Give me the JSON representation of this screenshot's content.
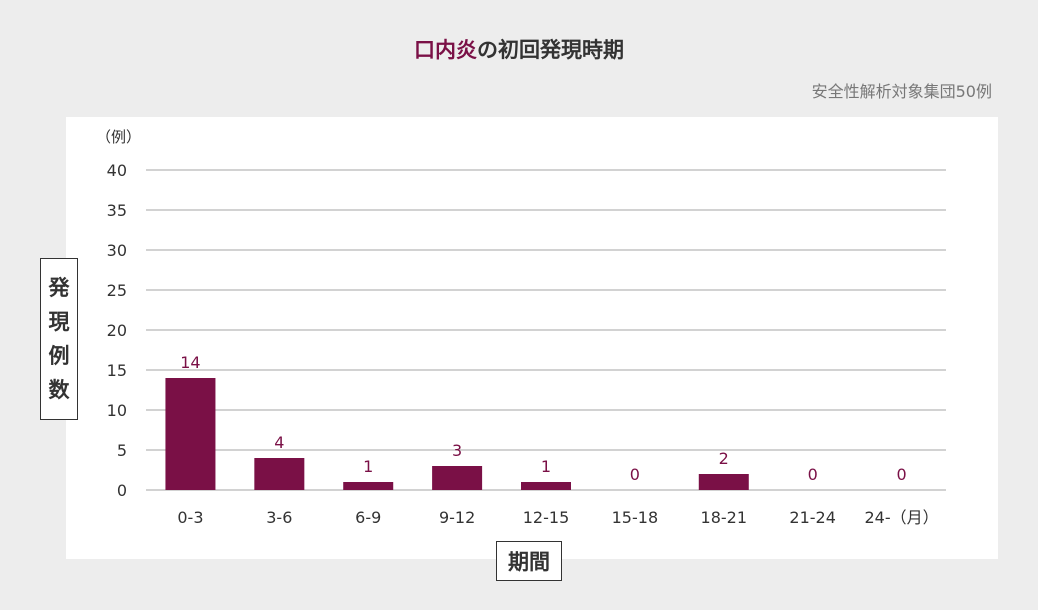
{
  "title": {
    "highlight": "口内炎",
    "rest": "の初回発現時期"
  },
  "subtitle": "安全性解析対象集団50例",
  "unit_label": "（例）",
  "colors": {
    "bar": "#7a1046",
    "label": "#7a1046",
    "grid": "#b8b8b8",
    "background": "#ededed",
    "panel": "#ffffff"
  },
  "chart_data": {
    "type": "bar",
    "title": "口内炎の初回発現時期",
    "xlabel": "期間",
    "ylabel": "発現例数",
    "categories": [
      "0-3",
      "3-6",
      "6-9",
      "9-12",
      "12-15",
      "15-18",
      "18-21",
      "21-24",
      "24-（月）"
    ],
    "values": [
      14,
      4,
      1,
      3,
      1,
      0,
      2,
      0,
      0
    ],
    "ylim": [
      0,
      40
    ],
    "yticks": [
      0,
      5,
      10,
      15,
      20,
      25,
      30,
      35,
      40
    ],
    "grid": true
  }
}
